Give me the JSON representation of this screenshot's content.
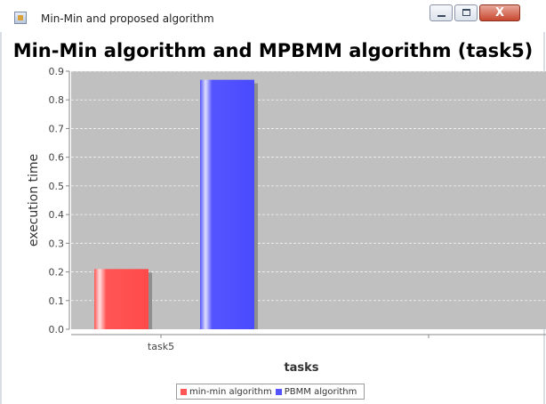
{
  "window": {
    "title": "Min-Min and proposed algorithm",
    "app_icon": "java-cup-icon",
    "buttons": {
      "minimize": "minimize-icon",
      "maximize": "maximize-icon",
      "close": "close-icon"
    },
    "close_glyph": "X"
  },
  "chart_data": {
    "type": "bar",
    "title": "Min-Min algorithm and MPBMM algorithm (task5)",
    "xlabel": "tasks",
    "ylabel": "execution time",
    "categories": [
      "task5"
    ],
    "series": [
      {
        "name": "min-min algorithm",
        "values": [
          0.21
        ],
        "color": "#ff5555"
      },
      {
        "name": "PBMM algorithm",
        "values": [
          0.87
        ],
        "color": "#5555ff"
      }
    ],
    "ylim": [
      0,
      0.9
    ],
    "yticks": [
      "0.0",
      "0.1",
      "0.2",
      "0.3",
      "0.4",
      "0.5",
      "0.6",
      "0.7",
      "0.8",
      "0.9"
    ],
    "plot_background": "#c0c0c0",
    "grid": true,
    "legend_position": "bottom"
  }
}
